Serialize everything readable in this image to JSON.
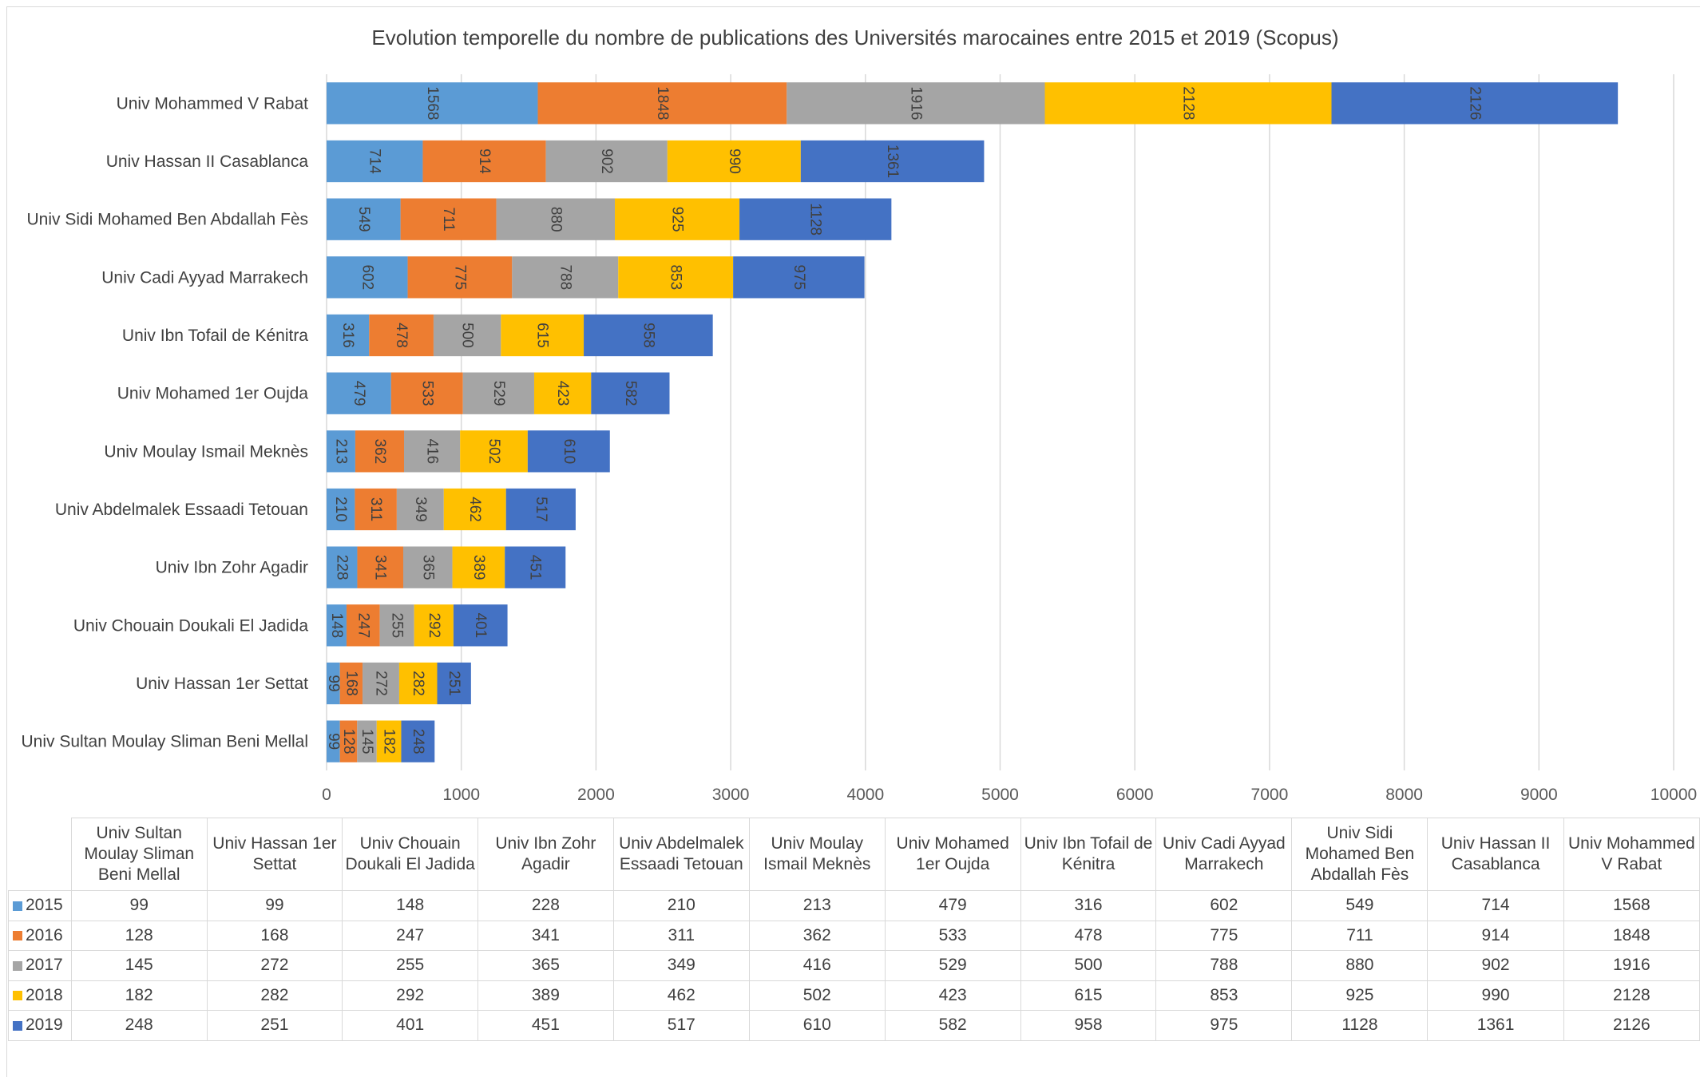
{
  "chart_data": {
    "type": "bar",
    "orientation": "horizontal",
    "stacked": true,
    "title": "Evolution temporelle du nombre de publications des Universités marocaines entre 2015 et 2019 (Scopus)",
    "xlim": [
      0,
      10000
    ],
    "xticks": [
      0,
      1000,
      2000,
      3000,
      4000,
      5000,
      6000,
      7000,
      8000,
      9000,
      10000
    ],
    "grid": "vertical",
    "legend": "in data table",
    "categories": [
      "Univ Mohammed V  Rabat",
      "Univ Hassan II Casablanca",
      "Univ Sidi Mohamed Ben Abdallah Fès",
      "Univ Cadi Ayyad Marrakech",
      "Univ Ibn Tofail de Kénitra",
      "Univ Mohamed 1er Oujda",
      "Univ Moulay Ismail  Meknès",
      "Univ Abdelmalek Essaadi Tetouan",
      "Univ Ibn Zohr Agadir",
      "Univ Chouain Doukali El Jadida",
      "Univ Hassan 1er Settat",
      "Univ Sultan Moulay Sliman Beni Mellal"
    ],
    "series": [
      {
        "name": "2015",
        "color": "#5b9bd5",
        "values": [
          1568,
          714,
          549,
          602,
          316,
          479,
          213,
          210,
          228,
          148,
          99,
          99
        ]
      },
      {
        "name": "2016",
        "color": "#ed7d31",
        "values": [
          1848,
          914,
          711,
          775,
          478,
          533,
          362,
          311,
          341,
          247,
          168,
          128
        ]
      },
      {
        "name": "2017",
        "color": "#a5a5a5",
        "values": [
          1916,
          902,
          880,
          788,
          500,
          529,
          416,
          349,
          365,
          255,
          272,
          145
        ]
      },
      {
        "name": "2018",
        "color": "#ffc000",
        "values": [
          2128,
          990,
          925,
          853,
          615,
          423,
          502,
          462,
          389,
          292,
          282,
          182
        ]
      },
      {
        "name": "2019",
        "color": "#4472c4",
        "values": [
          2126,
          1361,
          1128,
          975,
          958,
          582,
          610,
          517,
          451,
          401,
          251,
          248
        ]
      }
    ],
    "table_headers": [
      "Univ Sultan Moulay Sliman Beni Mellal",
      "Univ Hassan 1er Settat",
      "Univ Chouain Doukali El Jadida",
      "Univ Ibn Zohr Agadir",
      "Univ Abdelmalek Essaadi Tetouan",
      "Univ Moulay Ismail  Meknès",
      "Univ Mohamed 1er Oujda",
      "Univ Ibn Tofail de Kénitra",
      "Univ Cadi Ayyad Marrakech",
      "Univ Sidi Mohamed Ben Abdallah Fès",
      "Univ Hassan II Casablanca",
      "Univ Mohammed V Rabat"
    ]
  }
}
